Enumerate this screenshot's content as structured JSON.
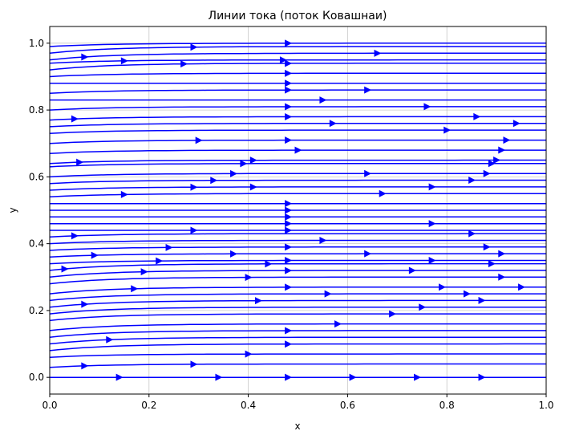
{
  "chart_data": {
    "type": "streamline",
    "title": "Линии тока (поток Ковашнаи)",
    "xlabel": "x",
    "ylabel": "y",
    "xlim": [
      0.0,
      1.0
    ],
    "ylim": [
      -0.05,
      1.05
    ],
    "x_ticks": [
      "0.0",
      "0.2",
      "0.4",
      "0.6",
      "0.8",
      "1.0"
    ],
    "y_ticks": [
      "0.0",
      "0.2",
      "0.4",
      "0.6",
      "0.8",
      "1.0"
    ],
    "x_tick_values": [
      0.0,
      0.2,
      0.4,
      0.6,
      0.8,
      1.0
    ],
    "y_tick_values": [
      0.0,
      0.2,
      0.4,
      0.6,
      0.8,
      1.0
    ],
    "grid": true,
    "line_color": "#0000ff",
    "flow_direction": "left-to-right",
    "streamlines": [
      {
        "y0": 0.0,
        "y1": 0.0,
        "arrow_x": [
          0.14,
          0.34,
          0.48,
          0.61,
          0.74,
          0.87
        ]
      },
      {
        "y0": 0.03,
        "y1": 0.04,
        "arrow_x": [
          0.07,
          0.29
        ]
      },
      {
        "y0": 0.06,
        "y1": 0.07,
        "arrow_x": [
          0.4
        ]
      },
      {
        "y0": 0.08,
        "y1": 0.1,
        "arrow_x": [
          0.48
        ]
      },
      {
        "y0": 0.1,
        "y1": 0.12,
        "arrow_x": [
          0.12
        ]
      },
      {
        "y0": 0.12,
        "y1": 0.14,
        "arrow_x": [
          0.48
        ]
      },
      {
        "y0": 0.14,
        "y1": 0.16,
        "arrow_x": [
          0.58
        ]
      },
      {
        "y0": 0.17,
        "y1": 0.19,
        "arrow_x": [
          0.69
        ]
      },
      {
        "y0": 0.19,
        "y1": 0.21,
        "arrow_x": [
          0.75
        ]
      },
      {
        "y0": 0.21,
        "y1": 0.23,
        "arrow_x": [
          0.07,
          0.42,
          0.87
        ]
      },
      {
        "y0": 0.23,
        "y1": 0.25,
        "arrow_x": [
          0.56,
          0.84
        ]
      },
      {
        "y0": 0.25,
        "y1": 0.27,
        "arrow_x": [
          0.17,
          0.48,
          0.79,
          0.95
        ]
      },
      {
        "y0": 0.28,
        "y1": 0.3,
        "arrow_x": [
          0.4,
          0.91
        ]
      },
      {
        "y0": 0.3,
        "y1": 0.32,
        "arrow_x": [
          0.19,
          0.48,
          0.73
        ]
      },
      {
        "y0": 0.32,
        "y1": 0.34,
        "arrow_x": [
          0.03,
          0.44,
          0.89
        ]
      },
      {
        "y0": 0.34,
        "y1": 0.35,
        "arrow_x": [
          0.22,
          0.48,
          0.77
        ]
      },
      {
        "y0": 0.36,
        "y1": 0.37,
        "arrow_x": [
          0.09,
          0.37,
          0.64,
          0.91
        ]
      },
      {
        "y0": 0.38,
        "y1": 0.39,
        "arrow_x": [
          0.24,
          0.48,
          0.88
        ]
      },
      {
        "y0": 0.4,
        "y1": 0.41,
        "arrow_x": [
          0.55
        ]
      },
      {
        "y0": 0.42,
        "y1": 0.43,
        "arrow_x": [
          0.05,
          0.85
        ]
      },
      {
        "y0": 0.44,
        "y1": 0.44,
        "arrow_x": [
          0.29,
          0.48
        ]
      },
      {
        "y0": 0.46,
        "y1": 0.46,
        "arrow_x": [
          0.48,
          0.77
        ]
      },
      {
        "y0": 0.48,
        "y1": 0.48,
        "arrow_x": [
          0.48
        ]
      },
      {
        "y0": 0.5,
        "y1": 0.5,
        "arrow_x": [
          0.48
        ]
      },
      {
        "y0": 0.52,
        "y1": 0.52,
        "arrow_x": [
          0.48
        ]
      },
      {
        "y0": 0.54,
        "y1": 0.55,
        "arrow_x": [
          0.15,
          0.67
        ]
      },
      {
        "y0": 0.56,
        "y1": 0.57,
        "arrow_x": [
          0.29,
          0.41,
          0.77
        ]
      },
      {
        "y0": 0.58,
        "y1": 0.59,
        "arrow_x": [
          0.33,
          0.85
        ]
      },
      {
        "y0": 0.6,
        "y1": 0.61,
        "arrow_x": [
          0.37,
          0.64,
          0.88
        ]
      },
      {
        "y0": 0.63,
        "y1": 0.64,
        "arrow_x": [
          0.39,
          0.89
        ]
      },
      {
        "y0": 0.64,
        "y1": 0.65,
        "arrow_x": [
          0.06,
          0.41,
          0.9
        ]
      },
      {
        "y0": 0.67,
        "y1": 0.68,
        "arrow_x": [
          0.5,
          0.91
        ]
      },
      {
        "y0": 0.7,
        "y1": 0.71,
        "arrow_x": [
          0.3,
          0.48,
          0.92
        ]
      },
      {
        "y0": 0.73,
        "y1": 0.74,
        "arrow_x": [
          0.8
        ]
      },
      {
        "y0": 0.75,
        "y1": 0.76,
        "arrow_x": [
          0.57,
          0.94
        ]
      },
      {
        "y0": 0.77,
        "y1": 0.78,
        "arrow_x": [
          0.05,
          0.48,
          0.86
        ]
      },
      {
        "y0": 0.8,
        "y1": 0.81,
        "arrow_x": [
          0.48,
          0.76
        ]
      },
      {
        "y0": 0.83,
        "y1": 0.83,
        "arrow_x": [
          0.55
        ]
      },
      {
        "y0": 0.85,
        "y1": 0.86,
        "arrow_x": [
          0.48,
          0.64
        ]
      },
      {
        "y0": 0.88,
        "y1": 0.88,
        "arrow_x": [
          0.48
        ]
      },
      {
        "y0": 0.9,
        "y1": 0.91,
        "arrow_x": [
          0.48
        ]
      },
      {
        "y0": 0.92,
        "y1": 0.94,
        "arrow_x": [
          0.27,
          0.48
        ]
      },
      {
        "y0": 0.94,
        "y1": 0.95,
        "arrow_x": [
          0.15,
          0.47
        ]
      },
      {
        "y0": 0.95,
        "y1": 0.97,
        "arrow_x": [
          0.07,
          0.66
        ]
      },
      {
        "y0": 0.97,
        "y1": 0.99,
        "arrow_x": [
          0.29
        ]
      },
      {
        "y0": 0.99,
        "y1": 1.0,
        "arrow_x": [
          0.48
        ]
      }
    ]
  }
}
